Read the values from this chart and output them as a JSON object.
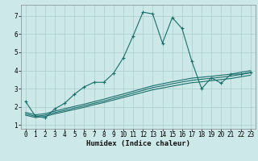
{
  "xlabel": "Humidex (Indice chaleur)",
  "bg_color": "#cce8e8",
  "line_color": "#1a6e6a",
  "grid_color": "#aacece",
  "xlim": [
    -0.5,
    23.5
  ],
  "ylim": [
    0.8,
    7.6
  ],
  "xticks": [
    0,
    1,
    2,
    3,
    4,
    5,
    6,
    7,
    8,
    9,
    10,
    11,
    12,
    13,
    14,
    15,
    16,
    17,
    18,
    19,
    20,
    21,
    22,
    23
  ],
  "yticks": [
    1,
    2,
    3,
    4,
    5,
    6,
    7
  ],
  "main_x": [
    0,
    1,
    2,
    3,
    4,
    5,
    6,
    7,
    8,
    9,
    10,
    11,
    12,
    13,
    14,
    15,
    16,
    17,
    18,
    19,
    20,
    21,
    22,
    23
  ],
  "main_y": [
    2.3,
    1.5,
    1.4,
    1.9,
    2.2,
    2.7,
    3.1,
    3.35,
    3.35,
    3.85,
    4.7,
    5.9,
    7.2,
    7.1,
    5.5,
    6.9,
    6.3,
    4.5,
    3.0,
    3.6,
    3.3,
    3.8,
    3.8,
    3.9
  ],
  "line2_x": [
    0,
    1,
    2,
    3,
    4,
    5,
    6,
    7,
    8,
    9,
    10,
    11,
    12,
    13,
    14,
    15,
    16,
    17,
    18,
    19,
    20,
    21,
    22,
    23
  ],
  "line2_y": [
    1.55,
    1.42,
    1.48,
    1.62,
    1.74,
    1.86,
    1.98,
    2.12,
    2.24,
    2.38,
    2.52,
    2.66,
    2.8,
    2.94,
    3.04,
    3.14,
    3.24,
    3.33,
    3.38,
    3.44,
    3.5,
    3.56,
    3.65,
    3.74
  ],
  "line3_x": [
    0,
    1,
    2,
    3,
    4,
    5,
    6,
    7,
    8,
    9,
    10,
    11,
    12,
    13,
    14,
    15,
    16,
    17,
    18,
    19,
    20,
    21,
    22,
    23
  ],
  "line3_y": [
    1.62,
    1.49,
    1.55,
    1.69,
    1.81,
    1.94,
    2.06,
    2.2,
    2.32,
    2.47,
    2.61,
    2.76,
    2.91,
    3.06,
    3.16,
    3.27,
    3.37,
    3.46,
    3.52,
    3.57,
    3.63,
    3.69,
    3.78,
    3.87
  ],
  "line4_x": [
    0,
    1,
    2,
    3,
    4,
    5,
    6,
    7,
    8,
    9,
    10,
    11,
    12,
    13,
    14,
    15,
    16,
    17,
    18,
    19,
    20,
    21,
    22,
    23
  ],
  "line4_y": [
    1.7,
    1.57,
    1.63,
    1.77,
    1.9,
    2.03,
    2.15,
    2.29,
    2.42,
    2.57,
    2.71,
    2.86,
    3.01,
    3.16,
    3.27,
    3.38,
    3.48,
    3.58,
    3.63,
    3.68,
    3.74,
    3.8,
    3.9,
    3.99
  ],
  "linewidth": 0.8,
  "marker_size": 3.0,
  "xlabel_fontsize": 6.5,
  "tick_fontsize": 5.5
}
